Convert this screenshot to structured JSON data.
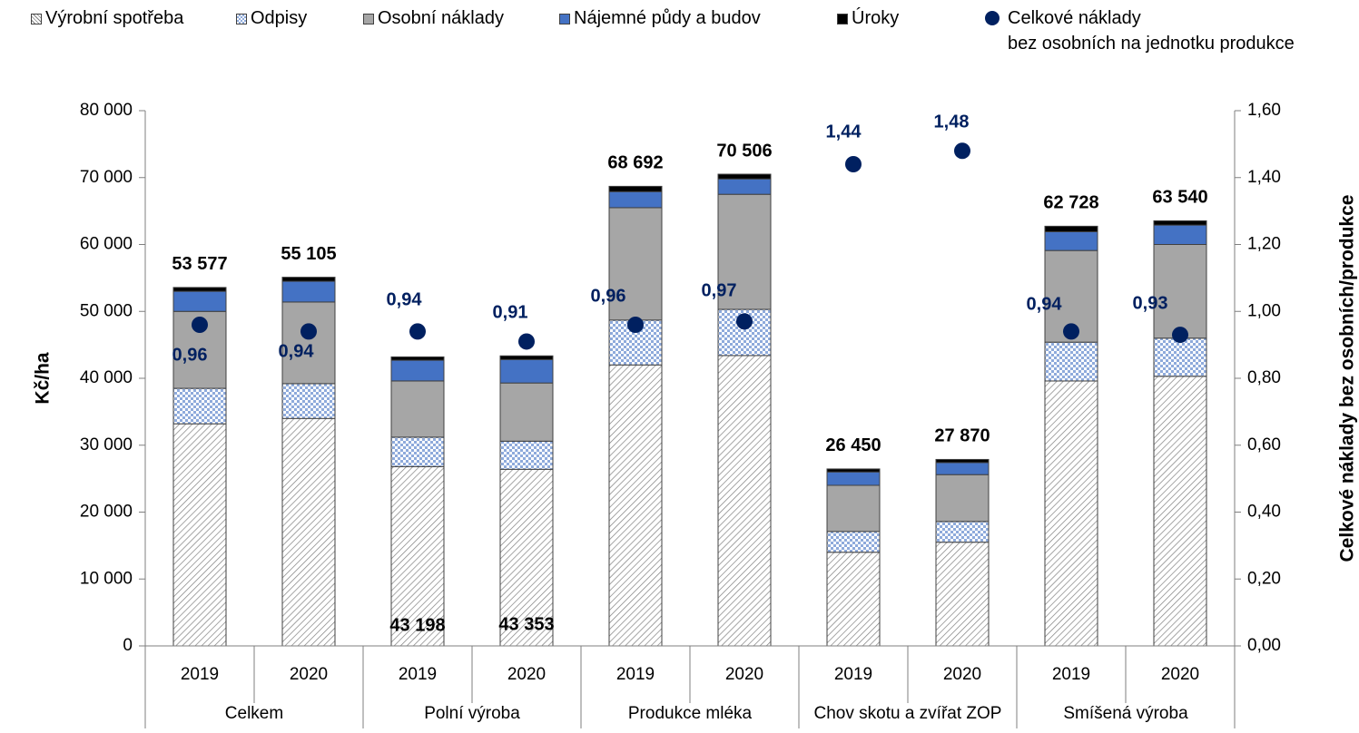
{
  "chart_data": {
    "type": "stacked_bar_scatter",
    "categories": [
      "2019",
      "2020",
      "2019",
      "2020",
      "2019",
      "2020",
      "2019",
      "2020",
      "2019",
      "2020"
    ],
    "groups": [
      "Celkem",
      "Polní výroba",
      "Produkce mléka",
      "Chov skotu a zvířat ZOP",
      "Smíšená výroba"
    ],
    "ylabel": "Kč/ha",
    "y2label": "Celkové náklady bez osobních/produkce",
    "ylim": [
      0,
      80000
    ],
    "yticks": [
      0,
      {
        "value": 10000,
        "label": "10 000"
      },
      {
        "value": 20000,
        "label": "20 000"
      },
      {
        "value": 30000,
        "label": "30 000"
      },
      {
        "value": 40000,
        "label": "40 000"
      },
      {
        "value": 50000,
        "label": "50 000"
      },
      {
        "value": 60000,
        "label": "60 000"
      },
      {
        "value": 70000,
        "label": "70 000"
      },
      {
        "value": 80000,
        "label": "80 000"
      }
    ],
    "y2lim": [
      0,
      1.6
    ],
    "y2ticks": [
      {
        "value": 0,
        "label": "0,00"
      },
      {
        "value": 0.2,
        "label": "0,20"
      },
      {
        "value": 0.4,
        "label": "0,40"
      },
      {
        "value": 0.6,
        "label": "0,60"
      },
      {
        "value": 0.8,
        "label": "0,80"
      },
      {
        "value": 1.0,
        "label": "1,00"
      },
      {
        "value": 1.2,
        "label": "1,20"
      },
      {
        "value": 1.4,
        "label": "1,40"
      },
      {
        "value": 1.6,
        "label": "1,60"
      }
    ],
    "series": [
      {
        "name": "Výrobní spotřeba",
        "color": "#7f7f7f",
        "pattern": "diagonal",
        "values": [
          33200,
          34000,
          26800,
          26400,
          42000,
          43400,
          14000,
          15500,
          39600,
          40300
        ]
      },
      {
        "name": "Odpisy",
        "color": "#4472c4",
        "pattern": "checker",
        "values": [
          5300,
          5200,
          4400,
          4200,
          6700,
          6900,
          3100,
          3100,
          5800,
          5700
        ]
      },
      {
        "name": "Osobní náklady",
        "color": "#a6a6a6",
        "values": [
          11500,
          12200,
          8400,
          8700,
          16800,
          17200,
          6900,
          7000,
          13700,
          14000
        ]
      },
      {
        "name": "Nájemné půdy a budov",
        "color": "#4472c4",
        "values": [
          3000,
          3100,
          3100,
          3500,
          2400,
          2300,
          2000,
          1800,
          2800,
          2900
        ]
      },
      {
        "name": "Úroky",
        "color": "#000000",
        "values": [
          577,
          605,
          498,
          553,
          792,
          706,
          450,
          470,
          828,
          640
        ]
      },
      {
        "name": "Celkové náklady\nbez osobních na jednotku produkce",
        "color": "#002060",
        "type": "scatter",
        "axis": "y2",
        "values": [
          0.96,
          0.94,
          0.94,
          0.91,
          0.96,
          0.97,
          1.44,
          1.48,
          0.94,
          0.93
        ],
        "value_labels": [
          "0,96",
          "0,94",
          "0,94",
          "0,91",
          "0,96",
          "0,97",
          "1,44",
          "1,48",
          "0,94",
          "0,93"
        ]
      }
    ],
    "totals": {
      "values": [
        53577,
        55105,
        43198,
        43353,
        68692,
        70506,
        26450,
        27870,
        62728,
        63540
      ],
      "value_labels": [
        "53 577",
        "55 105",
        "43 198",
        "43 353",
        "68 692",
        "70 506",
        "26 450",
        "27 870",
        "62 728",
        "63 540"
      ]
    }
  }
}
